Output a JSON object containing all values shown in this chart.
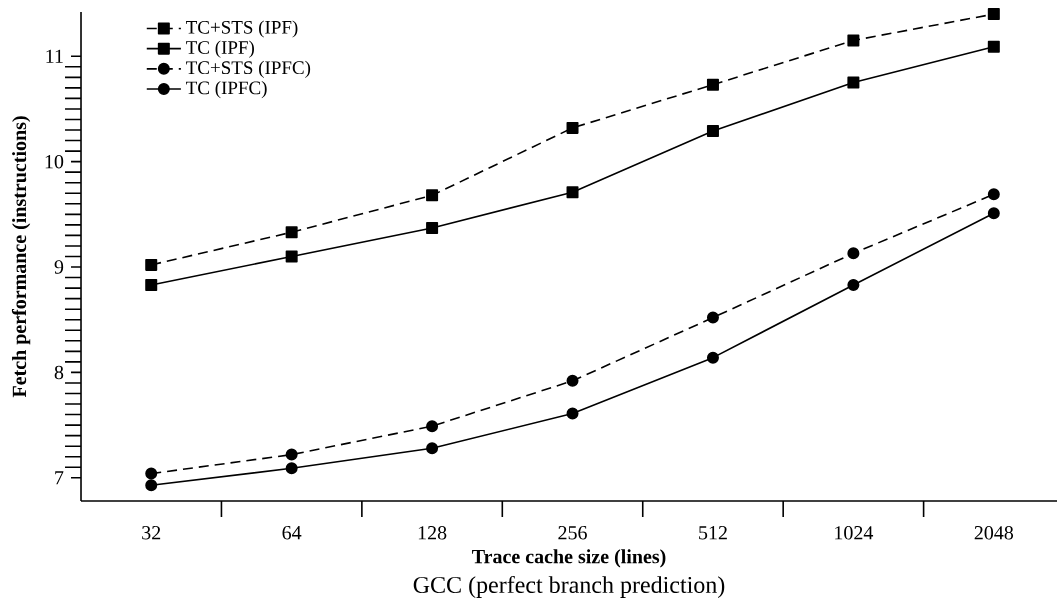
{
  "chart_data": {
    "type": "line",
    "title": "GCC (perfect branch prediction)",
    "xlabel": "Trace cache size (lines)",
    "ylabel": "Fetch performance (instructions)",
    "categories": [
      "32",
      "64",
      "128",
      "256",
      "512",
      "1024",
      "2048"
    ],
    "ylim": [
      6.78,
      11.42
    ],
    "yticks": [
      7,
      8,
      9,
      10,
      11
    ],
    "grid": false,
    "legend": "top left",
    "series": [
      {
        "name": "TC+STS (IPF)",
        "color": "#000000",
        "marker": "square",
        "line_style": "dashed",
        "values": [
          9.02,
          9.33,
          9.68,
          10.32,
          10.73,
          11.15,
          11.4
        ]
      },
      {
        "name": "TC (IPF)",
        "color": "#000000",
        "marker": "square",
        "line_style": "solid",
        "values": [
          8.83,
          9.1,
          9.37,
          9.71,
          10.29,
          10.75,
          11.09
        ]
      },
      {
        "name": "TC+STS (IPFC)",
        "color": "#000000",
        "marker": "circle",
        "line_style": "dashed",
        "values": [
          7.04,
          7.22,
          7.49,
          7.92,
          8.52,
          9.13,
          9.69
        ]
      },
      {
        "name": "TC (IPFC)",
        "color": "#000000",
        "marker": "circle",
        "line_style": "solid",
        "values": [
          6.93,
          7.09,
          7.28,
          7.61,
          8.14,
          8.83,
          9.51
        ]
      }
    ]
  }
}
